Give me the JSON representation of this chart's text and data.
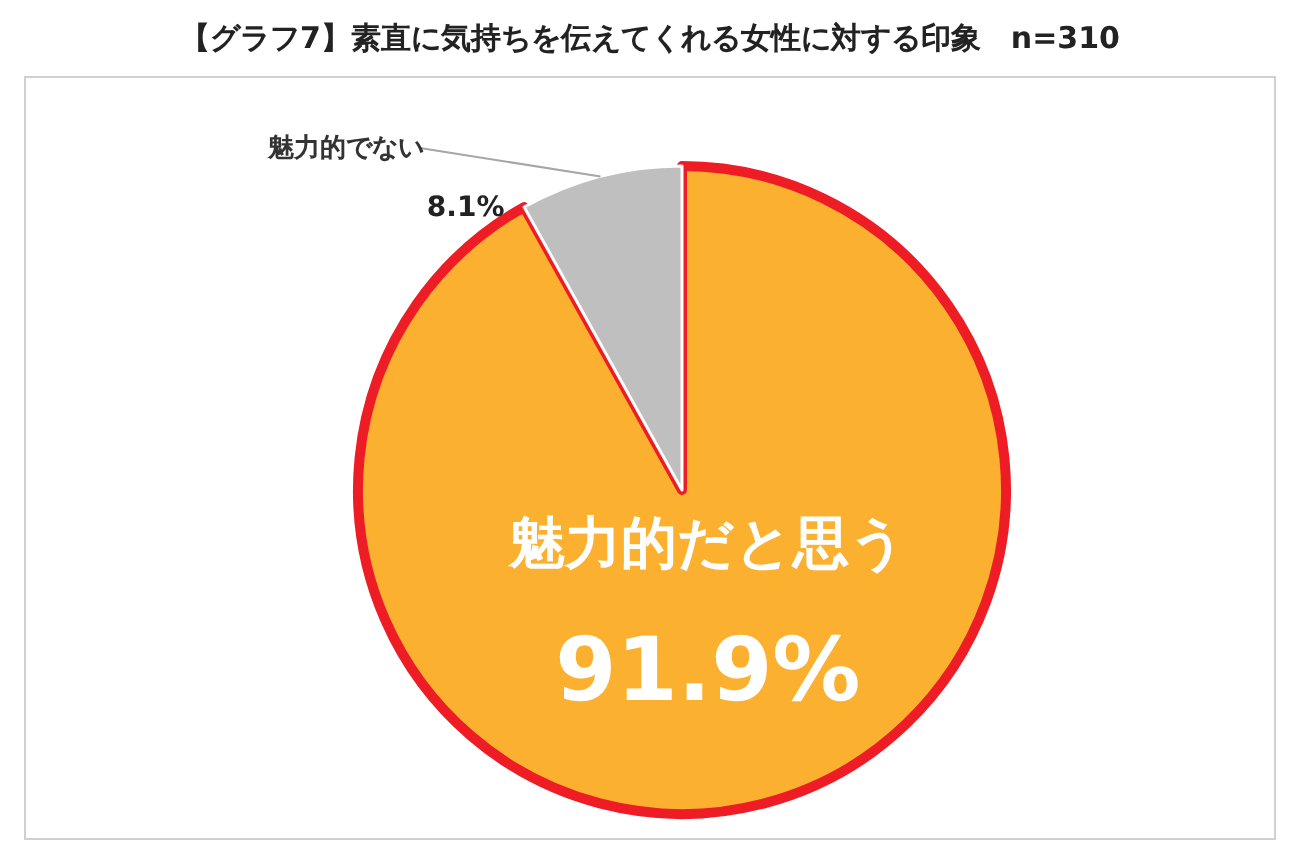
{
  "chart_data": {
    "type": "pie",
    "title": "【グラフ7】素直に気持ちを伝えてくれる女性に対する印象　n=310",
    "categories": [
      "魅力的だと思う",
      "魅力的でない"
    ],
    "values": [
      91.9,
      8.1
    ],
    "colors": [
      "#fbb12f",
      "#bfbfbf"
    ],
    "value_labels": [
      "91.9%",
      "8.1%"
    ],
    "legend": false
  }
}
